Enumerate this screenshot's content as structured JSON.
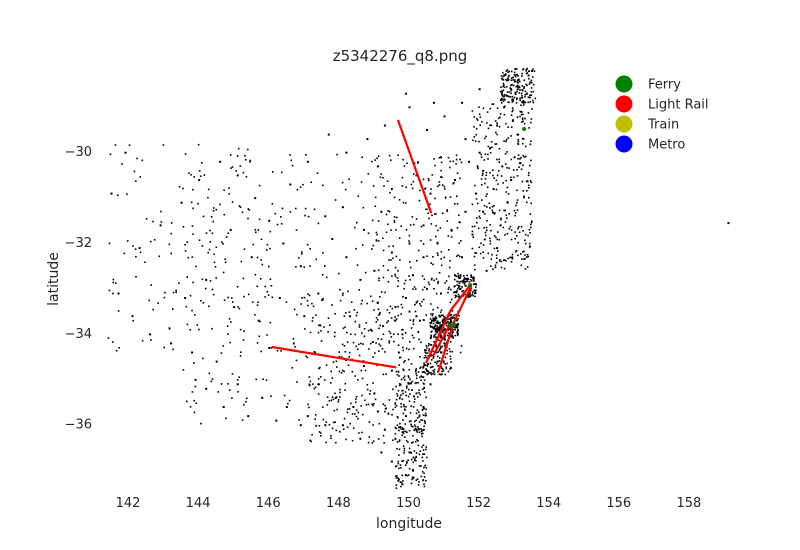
{
  "chart_data": {
    "type": "scatter",
    "title": "z5342276_q8.png",
    "xlabel": "longitude",
    "ylabel": "latitude",
    "xlim": [
      141.2,
      160.6
    ],
    "ylim": [
      -37.45,
      -28.2
    ],
    "xticks": [
      142,
      144,
      146,
      148,
      150,
      152,
      154,
      156,
      158
    ],
    "yticks": [
      -30,
      -32,
      -34,
      -36
    ],
    "grid": false,
    "legend_position": "top-right",
    "legend": [
      {
        "name": "Ferry",
        "color": "#008000"
      },
      {
        "name": "Light Rail",
        "color": "#ff0000"
      },
      {
        "name": "Train",
        "color": "#bfbf00"
      },
      {
        "name": "Metro",
        "color": "#0000ff"
      }
    ],
    "routes": [
      {
        "series": "Light Rail",
        "points": [
          [
            149.7,
            -29.3
          ],
          [
            150.65,
            -31.35
          ]
        ]
      },
      {
        "series": "Light Rail",
        "points": [
          [
            146.1,
            -34.3
          ],
          [
            149.65,
            -34.75
          ]
        ]
      },
      {
        "series": "Light Rail",
        "points": [
          [
            150.5,
            -34.65
          ],
          [
            151.2,
            -33.5
          ],
          [
            151.8,
            -32.9
          ]
        ]
      },
      {
        "series": "Light Rail",
        "points": [
          [
            150.85,
            -34.85
          ],
          [
            151.3,
            -33.75
          ],
          [
            151.8,
            -32.95
          ]
        ]
      },
      {
        "series": "Light Rail",
        "points": [
          [
            150.7,
            -34.5
          ],
          [
            151.15,
            -33.85
          ]
        ]
      }
    ],
    "ferry_points": [
      [
        153.3,
        -29.5
      ],
      [
        151.3,
        -33.8
      ],
      [
        151.2,
        -33.85
      ],
      [
        151.75,
        -32.95
      ]
    ],
    "stop_points": [
      [
        153.4,
        -28.3
      ],
      [
        153.45,
        -28.45
      ],
      [
        153.5,
        -28.2
      ],
      [
        153.35,
        -28.7
      ],
      [
        153.2,
        -29.1
      ],
      [
        153.1,
        -29.6
      ],
      [
        153.0,
        -30.1
      ],
      [
        152.9,
        -30.6
      ],
      [
        152.8,
        -31.1
      ],
      [
        152.6,
        -31.6
      ],
      [
        152.5,
        -32.1
      ],
      [
        152.2,
        -32.6
      ],
      [
        151.9,
        -32.9
      ],
      [
        151.6,
        -33.2
      ],
      [
        151.4,
        -33.5
      ],
      [
        151.2,
        -33.85
      ],
      [
        151.0,
        -34.2
      ],
      [
        150.8,
        -34.6
      ],
      [
        150.6,
        -35.1
      ],
      [
        150.4,
        -35.6
      ],
      [
        150.2,
        -36.1
      ],
      [
        150.0,
        -36.6
      ],
      [
        149.9,
        -37.1
      ],
      [
        149.8,
        -37.3
      ],
      [
        151.0,
        -33.7
      ],
      [
        150.9,
        -33.8
      ],
      [
        151.1,
        -33.9
      ],
      [
        151.15,
        -33.75
      ],
      [
        150.95,
        -33.95
      ],
      [
        150.7,
        -33.7
      ],
      [
        150.6,
        -33.75
      ],
      [
        150.3,
        -33.7
      ],
      [
        150.2,
        -33.6
      ],
      [
        150.0,
        -33.5
      ],
      [
        149.6,
        -33.4
      ],
      [
        149.1,
        -33.3
      ],
      [
        148.6,
        -32.8
      ],
      [
        148.2,
        -32.3
      ],
      [
        147.8,
        -31.9
      ],
      [
        147.4,
        -33.1
      ],
      [
        146.9,
        -32.5
      ],
      [
        146.4,
        -32.0
      ],
      [
        146.0,
        -31.5
      ],
      [
        145.6,
        -31.0
      ],
      [
        145.1,
        -30.5
      ],
      [
        144.6,
        -30.2
      ],
      [
        144.0,
        -30.6
      ],
      [
        143.5,
        -31.1
      ],
      [
        142.9,
        -31.6
      ],
      [
        142.3,
        -32.1
      ],
      [
        141.9,
        -30.0
      ],
      [
        141.5,
        -30.9
      ],
      [
        141.7,
        -33.1
      ],
      [
        142.1,
        -33.6
      ],
      [
        142.6,
        -34.0
      ],
      [
        143.2,
        -34.2
      ],
      [
        143.8,
        -34.4
      ],
      [
        144.5,
        -34.6
      ],
      [
        145.1,
        -35.1
      ],
      [
        145.8,
        -35.4
      ],
      [
        146.5,
        -35.6
      ],
      [
        147.1,
        -35.8
      ],
      [
        147.4,
        -35.1
      ],
      [
        147.9,
        -35.4
      ],
      [
        148.4,
        -35.6
      ],
      [
        149.0,
        -35.3
      ],
      [
        149.1,
        -35.7
      ],
      [
        149.3,
        -36.1
      ],
      [
        149.2,
        -36.6
      ],
      [
        148.6,
        -36.3
      ],
      [
        148.1,
        -36.0
      ],
      [
        147.6,
        -36.0
      ],
      [
        146.9,
        -36.0
      ],
      [
        146.2,
        -35.9
      ],
      [
        145.4,
        -35.8
      ],
      [
        144.7,
        -35.6
      ],
      [
        144.2,
        -35.2
      ],
      [
        143.9,
        -35.0
      ],
      [
        146.0,
        -34.3
      ],
      [
        146.7,
        -34.2
      ],
      [
        147.3,
        -34.4
      ],
      [
        148.0,
        -34.5
      ],
      [
        148.7,
        -34.7
      ],
      [
        149.5,
        -34.8
      ],
      [
        149.7,
        -34.4
      ],
      [
        149.8,
        -34.0
      ],
      [
        149.6,
        -33.7
      ],
      [
        149.9,
        -33.2
      ],
      [
        150.1,
        -32.7
      ],
      [
        150.4,
        -32.3
      ],
      [
        150.8,
        -32.0
      ],
      [
        151.2,
        -31.7
      ],
      [
        151.6,
        -31.3
      ],
      [
        151.9,
        -30.9
      ],
      [
        152.1,
        -30.4
      ],
      [
        152.3,
        -29.9
      ],
      [
        152.5,
        -29.4
      ],
      [
        152.7,
        -29.0
      ],
      [
        152.9,
        -28.6
      ],
      [
        152.0,
        -28.6
      ],
      [
        151.5,
        -28.9
      ],
      [
        151.0,
        -29.2
      ],
      [
        150.5,
        -29.5
      ],
      [
        150.0,
        -29.0
      ],
      [
        149.3,
        -29.4
      ],
      [
        148.8,
        -29.7
      ],
      [
        148.2,
        -30.0
      ],
      [
        147.7,
        -29.6
      ],
      [
        147.1,
        -30.2
      ],
      [
        146.6,
        -30.7
      ],
      [
        149.1,
        -30.3
      ],
      [
        149.5,
        -30.8
      ],
      [
        149.2,
        -31.3
      ],
      [
        148.7,
        -31.7
      ],
      [
        148.1,
        -31.2
      ],
      [
        147.6,
        -31.4
      ],
      [
        150.2,
        -30.5
      ],
      [
        150.6,
        -30.9
      ],
      [
        150.9,
        -30.1
      ],
      [
        151.3,
        -30.6
      ],
      [
        151.7,
        -30.2
      ],
      [
        150.4,
        -31.6
      ],
      [
        150.0,
        -32.0
      ],
      [
        149.5,
        -32.2
      ],
      [
        149.0,
        -32.6
      ],
      [
        151.6,
        -29.7
      ],
      [
        152.0,
        -30.0
      ],
      [
        150.7,
        -28.9
      ],
      [
        149.9,
        -28.7
      ],
      [
        144.9,
        -31.7
      ],
      [
        145.5,
        -32.3
      ],
      [
        144.2,
        -32.8
      ],
      [
        143.6,
        -33.2
      ],
      [
        145.0,
        -33.4
      ],
      [
        145.7,
        -33.7
      ],
      [
        146.3,
        -33.2
      ],
      [
        147.0,
        -33.6
      ],
      [
        148.3,
        -33.6
      ],
      [
        148.9,
        -33.9
      ],
      [
        153.1,
        -28.4
      ],
      [
        153.25,
        -28.9
      ],
      [
        152.95,
        -29.3
      ],
      [
        152.65,
        -30.3
      ],
      [
        152.4,
        -30.8
      ],
      [
        152.1,
        -31.3
      ],
      [
        151.8,
        -31.8
      ],
      [
        151.5,
        -32.3
      ],
      [
        151.3,
        -32.7
      ],
      [
        150.9,
        -33.1
      ],
      [
        150.5,
        -33.0
      ],
      [
        150.2,
        -33.3
      ],
      [
        150.9,
        -34.4
      ],
      [
        150.5,
        -34.8
      ],
      [
        150.2,
        -35.3
      ],
      [
        149.9,
        -35.8
      ],
      [
        149.6,
        -36.3
      ],
      [
        149.5,
        -36.8
      ],
      [
        149.7,
        -37.2
      ],
      [
        150.1,
        -37.0
      ],
      [
        159.1,
        -31.55
      ]
    ],
    "dense_regions": [
      {
        "x": [
          150.6,
          151.4
        ],
        "y": [
          -34.1,
          -33.55
        ],
        "count": 220
      },
      {
        "x": [
          151.3,
          151.9
        ],
        "y": [
          -33.2,
          -32.7
        ],
        "count": 120
      },
      {
        "x": [
          152.6,
          153.6
        ],
        "y": [
          -28.9,
          -28.15
        ],
        "count": 160
      },
      {
        "x": [
          151.8,
          153.5
        ],
        "y": [
          -32.6,
          -28.9
        ],
        "count": 320
      },
      {
        "x": [
          149.6,
          150.5
        ],
        "y": [
          -37.4,
          -34.6
        ],
        "count": 260
      },
      {
        "x": [
          150.4,
          151.2
        ],
        "y": [
          -34.9,
          -34.1
        ],
        "count": 120
      },
      {
        "x": [
          149.0,
          151.5
        ],
        "y": [
          -34.5,
          -30.0
        ],
        "count": 300
      },
      {
        "x": [
          147.0,
          150.0
        ],
        "y": [
          -36.4,
          -33.0
        ],
        "count": 220
      },
      {
        "x": [
          143.5,
          149.0
        ],
        "y": [
          -36.0,
          -30.0
        ],
        "count": 260
      },
      {
        "x": [
          141.4,
          146.0
        ],
        "y": [
          -34.5,
          -29.8
        ],
        "count": 120
      }
    ]
  }
}
